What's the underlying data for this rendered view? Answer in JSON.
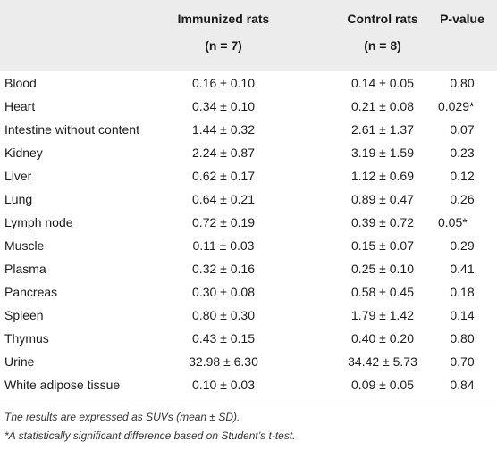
{
  "table": {
    "headers": {
      "group1_line1": "Immunized rats",
      "group1_line2": "(n = 7)",
      "group2_line1": "Control rats",
      "group2_line2": "(n = 8)",
      "pvalue": "P-value"
    },
    "rows": [
      {
        "tissue": "Blood",
        "immunized": "0.16 ± 0.10",
        "control": "0.14 ± 0.05",
        "p": "0.80"
      },
      {
        "tissue": "Heart",
        "immunized": "0.34 ± 0.10",
        "control": "0.21 ± 0.08",
        "p": "0.029*"
      },
      {
        "tissue": "Intestine without content",
        "immunized": "1.44 ± 0.32",
        "control": "2.61 ± 1.37",
        "p": "0.07"
      },
      {
        "tissue": "Kidney",
        "immunized": "2.24 ± 0.87",
        "control": "3.19 ± 1.59",
        "p": "0.23"
      },
      {
        "tissue": "Liver",
        "immunized": "0.62 ± 0.17",
        "control": "1.12 ± 0.69",
        "p": "0.12"
      },
      {
        "tissue": "Lung",
        "immunized": "0.64 ± 0.21",
        "control": "0.89 ± 0.47",
        "p": "0.26"
      },
      {
        "tissue": "Lymph node",
        "immunized": "0.72 ± 0.19",
        "control": "0.39 ± 0.72",
        "p": "0.05*"
      },
      {
        "tissue": "Muscle",
        "immunized": "0.11 ± 0.03",
        "control": "0.15 ± 0.07",
        "p": "0.29"
      },
      {
        "tissue": "Plasma",
        "immunized": "0.32 ± 0.16",
        "control": "0.25 ± 0.10",
        "p": "0.41"
      },
      {
        "tissue": "Pancreas",
        "immunized": "0.30 ± 0.08",
        "control": "0.58 ± 0.45",
        "p": "0.18"
      },
      {
        "tissue": "Spleen",
        "immunized": "0.80 ± 0.30",
        "control": "1.79 ± 1.42",
        "p": "0.14"
      },
      {
        "tissue": "Thymus",
        "immunized": "0.43 ± 0.15",
        "control": "0.40 ± 0.20",
        "p": "0.80"
      },
      {
        "tissue": "Urine",
        "immunized": "32.98 ± 6.30",
        "control": "34.42 ± 5.73",
        "p": "0.70"
      },
      {
        "tissue": "White adipose tissue",
        "immunized": "0.10 ± 0.03",
        "control": "0.09 ± 0.05",
        "p": "0.84"
      }
    ]
  },
  "footnotes": {
    "note1": "The results are expressed as SUVs (mean ± SD).",
    "note2": "*A statistically significant difference based on Student’s t-test."
  },
  "colors": {
    "header_bg": "#ececec",
    "rule": "#b9b9b9"
  }
}
